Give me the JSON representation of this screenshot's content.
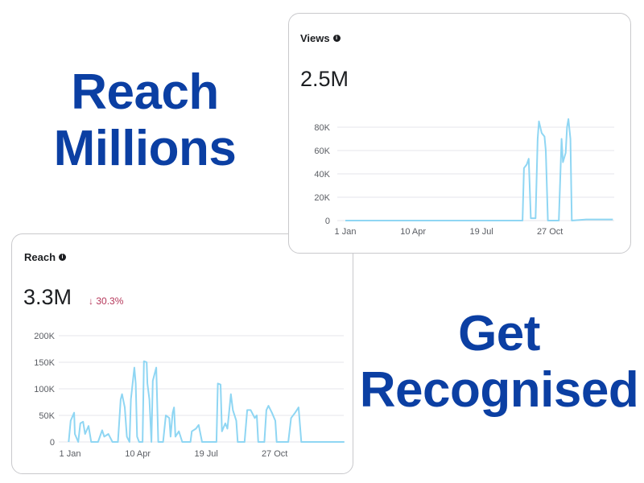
{
  "headline_top": [
    "Reach",
    "Millions"
  ],
  "headline_bottom": [
    "Get",
    "Recognised"
  ],
  "colors": {
    "headline": "#0b3fa3",
    "line": "#8fd6f3",
    "grid": "#e4e6eb",
    "delta_negative": "#b5375a"
  },
  "views": {
    "title": "Views",
    "info_icon": "info-icon",
    "total": "2.5M"
  },
  "reach": {
    "title": "Reach",
    "info_icon": "info-icon",
    "total": "3.3M",
    "delta_arrow": "↓",
    "delta": "30.3%"
  },
  "chart_data": [
    {
      "type": "line",
      "title": "Views",
      "x_unit": "day of year (1 Jan = 0)",
      "x_ticks": [
        {
          "label": "1 Jan",
          "day": 0
        },
        {
          "label": "10 Apr",
          "day": 99
        },
        {
          "label": "19 Jul",
          "day": 199
        },
        {
          "label": "27 Oct",
          "day": 299
        }
      ],
      "y_ticks": [
        {
          "label": "0",
          "value": 0
        },
        {
          "label": "20K",
          "value": 20000
        },
        {
          "label": "40K",
          "value": 40000
        },
        {
          "label": "60K",
          "value": 60000
        },
        {
          "label": "80K",
          "value": 80000
        }
      ],
      "xlim": [
        0,
        400
      ],
      "ylim": [
        0,
        80000
      ],
      "grid": true,
      "points": [
        [
          0,
          0
        ],
        [
          259,
          0
        ],
        [
          261,
          45000
        ],
        [
          265,
          48000
        ],
        [
          268,
          53000
        ],
        [
          271,
          2000
        ],
        [
          278,
          2000
        ],
        [
          281,
          70000
        ],
        [
          283,
          85000
        ],
        [
          287,
          75000
        ],
        [
          291,
          72000
        ],
        [
          293,
          60000
        ],
        [
          296,
          0
        ],
        [
          312,
          0
        ],
        [
          316,
          70000
        ],
        [
          318,
          50000
        ],
        [
          322,
          58000
        ],
        [
          324,
          80000
        ],
        [
          326,
          87000
        ],
        [
          329,
          70000
        ],
        [
          331,
          0
        ],
        [
          352,
          1000
        ],
        [
          391,
          1000
        ]
      ]
    },
    {
      "type": "line",
      "title": "Reach",
      "x_unit": "day of year (1 Jan = 0)",
      "x_ticks": [
        {
          "label": "1 Jan",
          "day": 0
        },
        {
          "label": "10 Apr",
          "day": 99
        },
        {
          "label": "19 Jul",
          "day": 199
        },
        {
          "label": "27 Oct",
          "day": 299
        }
      ],
      "y_ticks": [
        {
          "label": "0",
          "value": 0
        },
        {
          "label": "50K",
          "value": 50000
        },
        {
          "label": "100K",
          "value": 100000
        },
        {
          "label": "150K",
          "value": 150000
        },
        {
          "label": "200K",
          "value": 200000
        }
      ],
      "xlim": [
        0,
        400
      ],
      "ylim": [
        0,
        200000
      ],
      "grid": true,
      "points": [
        [
          -2,
          0
        ],
        [
          1,
          40000
        ],
        [
          6,
          55000
        ],
        [
          7,
          15000
        ],
        [
          12,
          0
        ],
        [
          15,
          35000
        ],
        [
          19,
          38000
        ],
        [
          22,
          15000
        ],
        [
          27,
          30000
        ],
        [
          31,
          0
        ],
        [
          41,
          0
        ],
        [
          47,
          22000
        ],
        [
          50,
          10000
        ],
        [
          56,
          15000
        ],
        [
          62,
          0
        ],
        [
          70,
          0
        ],
        [
          74,
          80000
        ],
        [
          76,
          90000
        ],
        [
          80,
          65000
        ],
        [
          83,
          10000
        ],
        [
          87,
          0
        ],
        [
          89,
          80000
        ],
        [
          94,
          140000
        ],
        [
          96,
          110000
        ],
        [
          98,
          10000
        ],
        [
          101,
          0
        ],
        [
          106,
          0
        ],
        [
          108,
          152000
        ],
        [
          112,
          150000
        ],
        [
          113,
          110000
        ],
        [
          116,
          80000
        ],
        [
          119,
          0
        ],
        [
          121,
          115000
        ],
        [
          126,
          140000
        ],
        [
          129,
          0
        ],
        [
          136,
          0
        ],
        [
          140,
          50000
        ],
        [
          145,
          45000
        ],
        [
          147,
          10000
        ],
        [
          150,
          55000
        ],
        [
          152,
          65000
        ],
        [
          154,
          10000
        ],
        [
          159,
          20000
        ],
        [
          164,
          0
        ],
        [
          176,
          0
        ],
        [
          178,
          20000
        ],
        [
          184,
          25000
        ],
        [
          188,
          32000
        ],
        [
          193,
          0
        ],
        [
          214,
          0
        ],
        [
          216,
          110000
        ],
        [
          220,
          108000
        ],
        [
          222,
          20000
        ],
        [
          227,
          35000
        ],
        [
          230,
          25000
        ],
        [
          232,
          50000
        ],
        [
          235,
          90000
        ],
        [
          238,
          60000
        ],
        [
          243,
          40000
        ],
        [
          245,
          0
        ],
        [
          255,
          0
        ],
        [
          259,
          60000
        ],
        [
          264,
          60000
        ],
        [
          270,
          45000
        ],
        [
          273,
          50000
        ],
        [
          275,
          0
        ],
        [
          284,
          0
        ],
        [
          287,
          60000
        ],
        [
          290,
          68000
        ],
        [
          295,
          55000
        ],
        [
          300,
          40000
        ],
        [
          302,
          0
        ],
        [
          319,
          0
        ],
        [
          323,
          45000
        ],
        [
          329,
          55000
        ],
        [
          334,
          65000
        ],
        [
          338,
          0
        ],
        [
          401,
          0
        ]
      ]
    }
  ]
}
